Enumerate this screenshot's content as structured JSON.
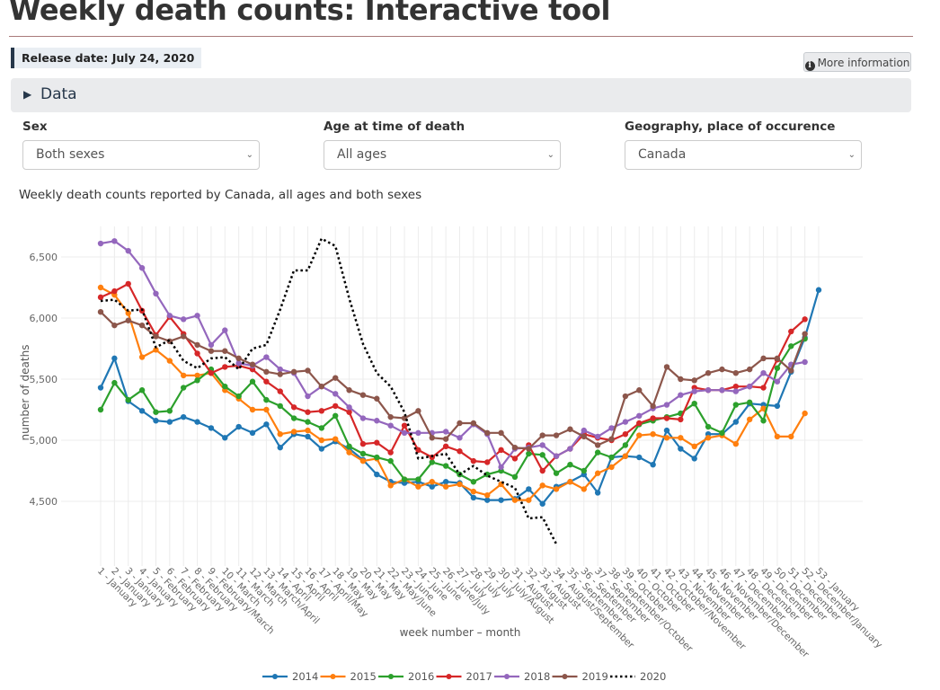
{
  "page": {
    "title": "Weekly death counts: Interactive tool",
    "release_date": "Release date: July 24, 2020",
    "more_info_label": "More information",
    "more_info_icon": "info-circle-icon",
    "data_section_label": "Data"
  },
  "filters": [
    {
      "label": "Sex",
      "value": "Both sexes"
    },
    {
      "label": "Age at time of death",
      "value": "All ages"
    },
    {
      "label": "Geography, place of occurence",
      "value": "Canada"
    }
  ],
  "chart_title": "Weekly death counts reported by Canada, all ages and both sexes",
  "chart_data": {
    "type": "line",
    "title": "Weekly death counts reported by Canada, all ages and both sexes",
    "xlabel": "week number – month",
    "ylabel": "number of deaths",
    "ylim": [
      4150,
      6700
    ],
    "yticks": [
      4500,
      5000,
      5500,
      6000,
      6500
    ],
    "ytick_labels": [
      "4,500",
      "5,000",
      "5,500",
      "6,000",
      "6,500"
    ],
    "grid": true,
    "legend_position": "bottom",
    "categories": [
      "1 - January",
      "2 - January",
      "3 - January",
      "4 - January",
      "5 - February",
      "6 - February",
      "7 - February",
      "8 - February",
      "9 - February/March",
      "10 - March",
      "11 - March",
      "12 - March",
      "13 - March/April",
      "14 - April",
      "15 - April",
      "16 - April",
      "17 - April/May",
      "18 - May",
      "19 - May",
      "20 - May",
      "21 - May",
      "22 - May/June",
      "23 - June",
      "24 - June",
      "25 - June",
      "26 - June/July",
      "27 - July",
      "28 - July",
      "29 - July",
      "30 - July/August",
      "31 - August",
      "32 - August",
      "33 - August",
      "34 - August/September",
      "35 - September",
      "36 - September",
      "37 - September",
      "38 - September/October",
      "39 - October",
      "40 - October",
      "41 - October",
      "42 - October/November",
      "43 - November",
      "44 - November",
      "45 - November",
      "46 - November/December",
      "47 - December",
      "48 - December",
      "49 - December",
      "50 - December",
      "51 - December",
      "52 - December/January",
      "53 - January"
    ],
    "series": [
      {
        "name": "2014",
        "color": "#1f77b4",
        "dash": false,
        "values": [
          5430,
          5670,
          5320,
          5240,
          5160,
          5150,
          5190,
          5150,
          5100,
          5020,
          5110,
          5060,
          5130,
          4940,
          5050,
          5030,
          4930,
          4990,
          4930,
          4840,
          4720,
          4660,
          4650,
          4660,
          4620,
          4660,
          4650,
          4530,
          4510,
          4510,
          4520,
          4600,
          4480,
          4620,
          4660,
          4720,
          4570,
          4860,
          4870,
          4860,
          4800,
          5080,
          4930,
          4850,
          5050,
          5050,
          5150,
          5300,
          5290,
          5280,
          5560,
          5840,
          6230
        ]
      },
      {
        "name": "2015",
        "color": "#ff7f0e",
        "dash": false,
        "values": [
          6250,
          6190,
          6040,
          5680,
          5740,
          5650,
          5530,
          5530,
          5550,
          5410,
          5340,
          5250,
          5250,
          5050,
          5070,
          5080,
          5000,
          5010,
          4900,
          4830,
          4850,
          4630,
          4680,
          4620,
          4660,
          4620,
          4640,
          4580,
          4550,
          4640,
          4510,
          4510,
          4630,
          4600,
          4660,
          4600,
          4730,
          4780,
          4870,
          5040,
          5050,
          5020,
          5020,
          4950,
          5020,
          5040,
          4970,
          5170,
          5260,
          5030,
          5030,
          5220,
          null
        ]
      },
      {
        "name": "2016",
        "color": "#2ca02c",
        "dash": false,
        "values": [
          5250,
          5470,
          5330,
          5410,
          5230,
          5240,
          5430,
          5490,
          5580,
          5440,
          5360,
          5480,
          5330,
          5280,
          5180,
          5150,
          5100,
          5200,
          4950,
          4890,
          4860,
          4830,
          4680,
          4680,
          4820,
          4790,
          4720,
          4660,
          4720,
          4750,
          4700,
          4890,
          4880,
          4730,
          4800,
          4750,
          4900,
          4860,
          4960,
          5130,
          5160,
          5190,
          5220,
          5300,
          5110,
          5060,
          5290,
          5310,
          5160,
          5590,
          5770,
          5830,
          null
        ]
      },
      {
        "name": "2017",
        "color": "#d62728",
        "dash": false,
        "values": [
          6170,
          6220,
          6280,
          6060,
          5860,
          6010,
          5870,
          5710,
          5550,
          5600,
          5610,
          5580,
          5480,
          5400,
          5270,
          5230,
          5240,
          5280,
          5230,
          4970,
          4980,
          4900,
          5120,
          4920,
          4860,
          4950,
          4910,
          4830,
          4820,
          4920,
          4850,
          4960,
          4750,
          4870,
          4930,
          5050,
          5020,
          5000,
          5050,
          5140,
          5180,
          5180,
          5170,
          5430,
          5410,
          5410,
          5440,
          5440,
          5430,
          5660,
          5890,
          5990,
          null
        ]
      },
      {
        "name": "2018",
        "color": "#9467bd",
        "dash": false,
        "values": [
          6610,
          6630,
          6550,
          6410,
          6200,
          6020,
          5990,
          6020,
          5780,
          5900,
          5630,
          5610,
          5680,
          5580,
          5550,
          5360,
          5440,
          5380,
          5270,
          5180,
          5160,
          5120,
          5060,
          5060,
          5060,
          5070,
          5020,
          5130,
          5050,
          4780,
          4930,
          4940,
          4960,
          4870,
          4930,
          5080,
          5030,
          5100,
          5150,
          5200,
          5260,
          5290,
          5370,
          5400,
          5410,
          5410,
          5400,
          5440,
          5550,
          5480,
          5620,
          5640,
          null
        ]
      },
      {
        "name": "2019",
        "color": "#8c564b",
        "dash": false,
        "values": [
          6050,
          5940,
          5980,
          5940,
          5850,
          5810,
          5850,
          5780,
          5730,
          5730,
          5670,
          5620,
          5560,
          5540,
          5560,
          5570,
          5440,
          5510,
          5410,
          5370,
          5340,
          5190,
          5180,
          5240,
          5020,
          5010,
          5140,
          5140,
          5060,
          5060,
          4940,
          4930,
          5040,
          5040,
          5090,
          5030,
          4960,
          5010,
          5360,
          5410,
          5280,
          5600,
          5500,
          5490,
          5550,
          5580,
          5550,
          5580,
          5670,
          5670,
          5570,
          5870,
          null
        ]
      },
      {
        "name": "2020",
        "color": "#000000",
        "dash": true,
        "values": [
          6140,
          6150,
          6060,
          6070,
          5760,
          5820,
          5650,
          5590,
          5670,
          5680,
          5580,
          5750,
          5780,
          6070,
          6390,
          6390,
          6650,
          6590,
          6160,
          5790,
          5550,
          5440,
          5230,
          4850,
          4870,
          4890,
          4720,
          4790,
          4710,
          4660,
          4610,
          4360,
          4370,
          4150,
          null,
          null,
          null,
          null,
          null,
          null,
          null,
          null,
          null,
          null,
          null,
          null,
          null,
          null,
          null,
          null,
          null,
          null,
          null
        ]
      }
    ]
  }
}
